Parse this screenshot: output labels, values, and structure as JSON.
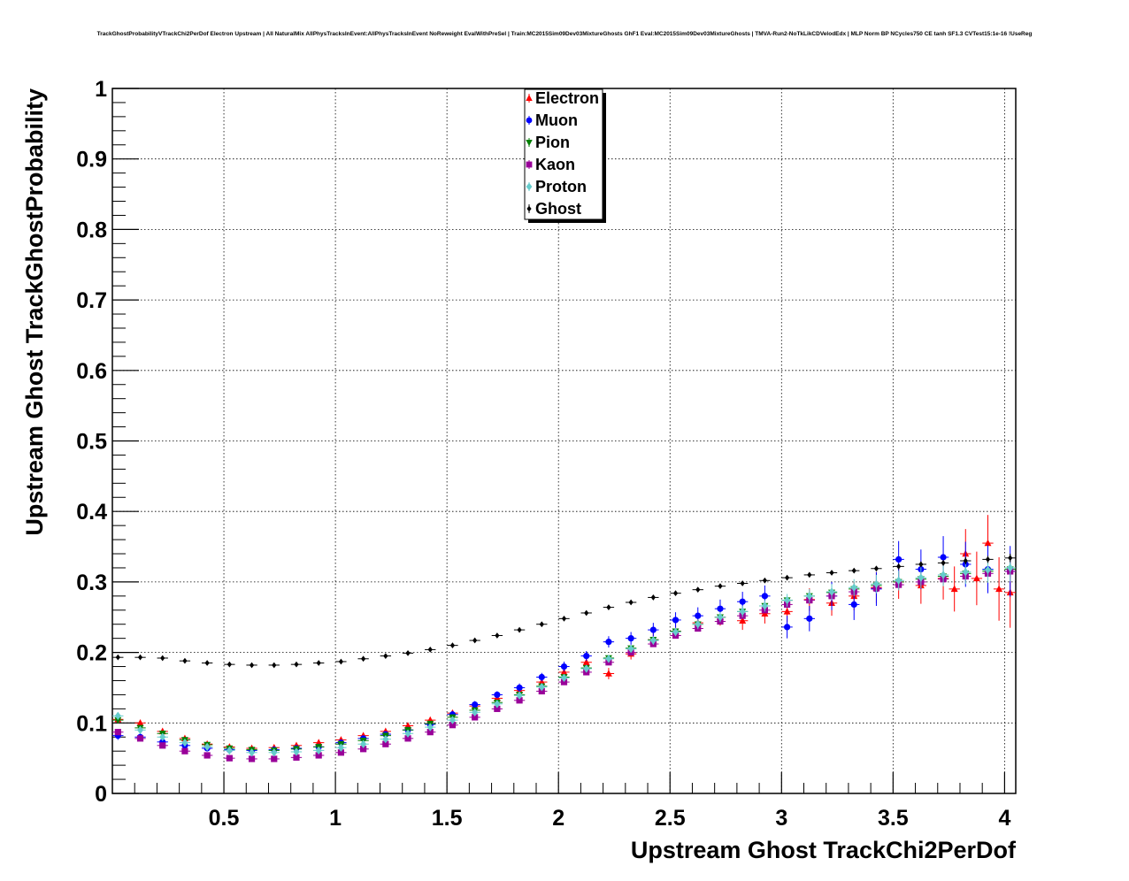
{
  "chart_data": {
    "type": "scatter",
    "title": "TrackGhostProbabilityVTrackChi2PerDof Electron Upstream | All NaturalMix AllPhysTracksInEvent:AllPhysTracksInEvent NoReweight EvalWithPreSel | Train:MC2015Sim09Dev03MixtureGhosts GhF1 Eval:MC2015Sim09Dev03MixtureGhosts | TMVA-Run2-NoTkLikCDVelodEdx | MLP Norm BP NCycles750 CE tanh SF1.3 CVTest15:1e-16 !UseReg",
    "xlabel": "Upstream Ghost TrackChi2PerDof",
    "ylabel": "Upstream Ghost TrackGhostProbability",
    "xlim": [
      0,
      4.05
    ],
    "ylim": [
      0,
      1
    ],
    "xticks": [
      "0.5",
      "1",
      "1.5",
      "2",
      "2.5",
      "3",
      "3.5",
      "4"
    ],
    "yticks": [
      "0",
      "0.1",
      "0.2",
      "0.3",
      "0.4",
      "0.5",
      "0.6",
      "0.7",
      "0.8",
      "0.9",
      "1"
    ],
    "grid": true,
    "legend_position": "top-center",
    "series": [
      {
        "name": "Electron",
        "color": "#ff0000",
        "marker": "triangle-up",
        "x": [
          0.0,
          0.1,
          0.2,
          0.3,
          0.4,
          0.5,
          0.6,
          0.7,
          0.8,
          0.9,
          1.0,
          1.1,
          1.2,
          1.3,
          1.4,
          1.5,
          1.6,
          1.7,
          1.8,
          1.9,
          2.0,
          2.1,
          2.2,
          2.3,
          2.4,
          2.5,
          2.6,
          2.7,
          2.8,
          2.9,
          3.0,
          3.1,
          3.2,
          3.3,
          3.4,
          3.5,
          3.6,
          3.7,
          3.75,
          3.8,
          3.85,
          3.9,
          3.95,
          4.0
        ],
        "y": [
          0.105,
          0.1,
          0.088,
          0.078,
          0.07,
          0.066,
          0.064,
          0.065,
          0.068,
          0.072,
          0.076,
          0.082,
          0.088,
          0.096,
          0.104,
          0.114,
          0.124,
          0.135,
          0.146,
          0.158,
          0.172,
          0.186,
          0.17,
          0.198,
          0.218,
          0.23,
          0.242,
          0.25,
          0.245,
          0.255,
          0.258,
          0.275,
          0.27,
          0.28,
          0.292,
          0.3,
          0.295,
          0.305,
          0.29,
          0.34,
          0.305,
          0.355,
          0.29,
          0.285
        ],
        "err": [
          0.004,
          0.003,
          0.003,
          0.003,
          0.003,
          0.003,
          0.003,
          0.003,
          0.003,
          0.003,
          0.003,
          0.003,
          0.003,
          0.004,
          0.004,
          0.004,
          0.004,
          0.005,
          0.005,
          0.005,
          0.006,
          0.006,
          0.008,
          0.008,
          0.009,
          0.01,
          0.01,
          0.012,
          0.013,
          0.014,
          0.015,
          0.016,
          0.018,
          0.02,
          0.022,
          0.024,
          0.026,
          0.03,
          0.032,
          0.035,
          0.038,
          0.04,
          0.045,
          0.05
        ]
      },
      {
        "name": "Muon",
        "color": "#0000ff",
        "marker": "circle",
        "x": [
          0.0,
          0.1,
          0.2,
          0.3,
          0.4,
          0.5,
          0.6,
          0.7,
          0.8,
          0.9,
          1.0,
          1.1,
          1.2,
          1.3,
          1.4,
          1.5,
          1.6,
          1.7,
          1.8,
          1.9,
          2.0,
          2.1,
          2.2,
          2.3,
          2.4,
          2.5,
          2.6,
          2.7,
          2.8,
          2.9,
          3.0,
          3.1,
          3.2,
          3.3,
          3.4,
          3.5,
          3.6,
          3.7,
          3.8,
          3.9,
          4.0
        ],
        "y": [
          0.082,
          0.08,
          0.073,
          0.068,
          0.064,
          0.062,
          0.061,
          0.062,
          0.064,
          0.066,
          0.072,
          0.078,
          0.084,
          0.09,
          0.098,
          0.112,
          0.126,
          0.14,
          0.15,
          0.165,
          0.18,
          0.195,
          0.215,
          0.22,
          0.232,
          0.246,
          0.252,
          0.262,
          0.272,
          0.28,
          0.236,
          0.248,
          0.28,
          0.268,
          0.29,
          0.332,
          0.318,
          0.335,
          0.325,
          0.318,
          0.315
        ],
        "err": [
          0.006,
          0.005,
          0.005,
          0.004,
          0.004,
          0.004,
          0.004,
          0.004,
          0.004,
          0.004,
          0.004,
          0.004,
          0.004,
          0.004,
          0.004,
          0.005,
          0.005,
          0.005,
          0.006,
          0.006,
          0.007,
          0.007,
          0.008,
          0.009,
          0.01,
          0.011,
          0.012,
          0.013,
          0.014,
          0.015,
          0.016,
          0.018,
          0.02,
          0.022,
          0.024,
          0.026,
          0.028,
          0.03,
          0.032,
          0.034,
          0.036
        ]
      },
      {
        "name": "Pion",
        "color": "#008000",
        "marker": "triangle-down",
        "x": [
          0.0,
          0.1,
          0.2,
          0.3,
          0.4,
          0.5,
          0.6,
          0.7,
          0.8,
          0.9,
          1.0,
          1.1,
          1.2,
          1.3,
          1.4,
          1.5,
          1.6,
          1.7,
          1.8,
          1.9,
          2.0,
          2.1,
          2.2,
          2.3,
          2.4,
          2.5,
          2.6,
          2.7,
          2.8,
          2.9,
          3.0,
          3.1,
          3.2,
          3.3,
          3.4,
          3.5,
          3.6,
          3.7,
          3.8,
          3.9,
          4.0
        ],
        "y": [
          0.104,
          0.093,
          0.085,
          0.076,
          0.069,
          0.064,
          0.062,
          0.061,
          0.063,
          0.066,
          0.07,
          0.075,
          0.082,
          0.09,
          0.099,
          0.108,
          0.118,
          0.129,
          0.14,
          0.152,
          0.165,
          0.178,
          0.192,
          0.206,
          0.218,
          0.23,
          0.24,
          0.25,
          0.258,
          0.266,
          0.274,
          0.28,
          0.285,
          0.29,
          0.295,
          0.3,
          0.304,
          0.308,
          0.312,
          0.315,
          0.318
        ],
        "err": [
          0.002,
          0.002,
          0.002,
          0.002,
          0.002,
          0.002,
          0.002,
          0.002,
          0.002,
          0.002,
          0.002,
          0.002,
          0.002,
          0.002,
          0.002,
          0.002,
          0.002,
          0.002,
          0.002,
          0.002,
          0.002,
          0.003,
          0.003,
          0.003,
          0.003,
          0.003,
          0.003,
          0.003,
          0.004,
          0.004,
          0.004,
          0.004,
          0.005,
          0.005,
          0.005,
          0.006,
          0.006,
          0.007,
          0.007,
          0.008,
          0.008
        ]
      },
      {
        "name": "Kaon",
        "color": "#990099",
        "marker": "square",
        "x": [
          0.0,
          0.1,
          0.2,
          0.3,
          0.4,
          0.5,
          0.6,
          0.7,
          0.8,
          0.9,
          1.0,
          1.1,
          1.2,
          1.3,
          1.4,
          1.5,
          1.6,
          1.7,
          1.8,
          1.9,
          2.0,
          2.1,
          2.2,
          2.3,
          2.4,
          2.5,
          2.6,
          2.7,
          2.8,
          2.9,
          3.0,
          3.1,
          3.2,
          3.3,
          3.4,
          3.5,
          3.6,
          3.7,
          3.8,
          3.9,
          4.0
        ],
        "y": [
          0.087,
          0.078,
          0.068,
          0.06,
          0.054,
          0.05,
          0.049,
          0.049,
          0.051,
          0.054,
          0.058,
          0.063,
          0.07,
          0.078,
          0.087,
          0.097,
          0.108,
          0.12,
          0.132,
          0.145,
          0.158,
          0.172,
          0.186,
          0.2,
          0.212,
          0.224,
          0.234,
          0.244,
          0.252,
          0.26,
          0.268,
          0.274,
          0.28,
          0.286,
          0.291,
          0.296,
          0.3,
          0.304,
          0.308,
          0.312,
          0.315
        ],
        "err": [
          0.002,
          0.002,
          0.002,
          0.002,
          0.002,
          0.002,
          0.002,
          0.002,
          0.002,
          0.002,
          0.002,
          0.002,
          0.002,
          0.002,
          0.002,
          0.002,
          0.002,
          0.002,
          0.002,
          0.002,
          0.003,
          0.003,
          0.003,
          0.003,
          0.003,
          0.003,
          0.004,
          0.004,
          0.004,
          0.004,
          0.005,
          0.005,
          0.005,
          0.006,
          0.006,
          0.007,
          0.007,
          0.008,
          0.008,
          0.009,
          0.009
        ]
      },
      {
        "name": "Proton",
        "color": "#66cccc",
        "marker": "diamond",
        "x": [
          0.0,
          0.1,
          0.2,
          0.3,
          0.4,
          0.5,
          0.6,
          0.7,
          0.8,
          0.9,
          1.0,
          1.1,
          1.2,
          1.3,
          1.4,
          1.5,
          1.6,
          1.7,
          1.8,
          1.9,
          2.0,
          2.1,
          2.2,
          2.3,
          2.4,
          2.5,
          2.6,
          2.7,
          2.8,
          2.9,
          3.0,
          3.1,
          3.2,
          3.3,
          3.4,
          3.5,
          3.6,
          3.7,
          3.8,
          3.9,
          4.0
        ],
        "y": [
          0.11,
          0.09,
          0.08,
          0.072,
          0.066,
          0.061,
          0.058,
          0.058,
          0.059,
          0.061,
          0.065,
          0.07,
          0.077,
          0.085,
          0.094,
          0.104,
          0.115,
          0.127,
          0.139,
          0.151,
          0.164,
          0.177,
          0.191,
          0.205,
          0.217,
          0.229,
          0.24,
          0.25,
          0.258,
          0.266,
          0.274,
          0.28,
          0.286,
          0.292,
          0.297,
          0.302,
          0.306,
          0.31,
          0.314,
          0.317,
          0.32
        ],
        "err": [
          0.005,
          0.004,
          0.004,
          0.003,
          0.003,
          0.003,
          0.003,
          0.003,
          0.003,
          0.003,
          0.003,
          0.003,
          0.003,
          0.003,
          0.003,
          0.003,
          0.003,
          0.004,
          0.004,
          0.004,
          0.004,
          0.005,
          0.005,
          0.005,
          0.006,
          0.006,
          0.007,
          0.007,
          0.008,
          0.008,
          0.009,
          0.01,
          0.011,
          0.012,
          0.013,
          0.014,
          0.015,
          0.016,
          0.017,
          0.018,
          0.019
        ]
      },
      {
        "name": "Ghost",
        "color": "#000000",
        "marker": "diamond",
        "x": [
          0.0,
          0.1,
          0.2,
          0.3,
          0.4,
          0.5,
          0.6,
          0.7,
          0.8,
          0.9,
          1.0,
          1.1,
          1.2,
          1.3,
          1.4,
          1.5,
          1.6,
          1.7,
          1.8,
          1.9,
          2.0,
          2.1,
          2.2,
          2.3,
          2.4,
          2.5,
          2.6,
          2.7,
          2.8,
          2.9,
          3.0,
          3.1,
          3.2,
          3.3,
          3.4,
          3.5,
          3.6,
          3.7,
          3.8,
          3.9,
          4.0
        ],
        "y": [
          0.193,
          0.193,
          0.192,
          0.188,
          0.185,
          0.183,
          0.182,
          0.182,
          0.183,
          0.185,
          0.187,
          0.191,
          0.195,
          0.199,
          0.204,
          0.21,
          0.217,
          0.224,
          0.232,
          0.24,
          0.248,
          0.256,
          0.264,
          0.271,
          0.278,
          0.284,
          0.289,
          0.294,
          0.298,
          0.302,
          0.306,
          0.31,
          0.313,
          0.316,
          0.319,
          0.322,
          0.325,
          0.327,
          0.33,
          0.332,
          0.334
        ],
        "err": [
          0.001,
          0.001,
          0.001,
          0.001,
          0.001,
          0.001,
          0.001,
          0.001,
          0.001,
          0.001,
          0.001,
          0.001,
          0.001,
          0.001,
          0.001,
          0.001,
          0.001,
          0.001,
          0.001,
          0.001,
          0.001,
          0.001,
          0.001,
          0.001,
          0.001,
          0.002,
          0.002,
          0.002,
          0.002,
          0.002,
          0.002,
          0.003,
          0.003,
          0.003,
          0.003,
          0.004,
          0.004,
          0.004,
          0.005,
          0.005,
          0.006
        ]
      }
    ]
  }
}
